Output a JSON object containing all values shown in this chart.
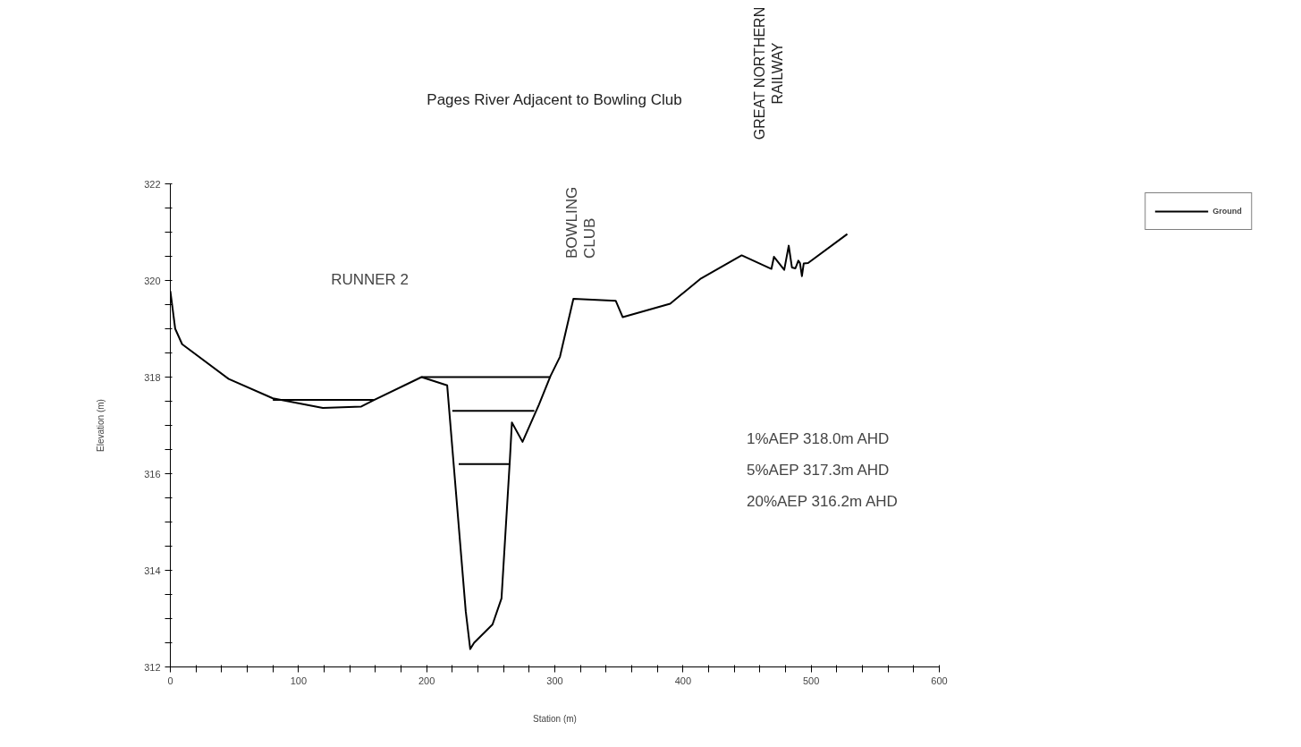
{
  "chart_data": {
    "type": "line",
    "title": "Pages River Adjacent to Bowling Club",
    "xlabel": "Station (m)",
    "ylabel": "Elevation (m)",
    "series": [
      {
        "name": "Ground",
        "color": "#000000",
        "x": [
          0,
          3.8,
          9.2,
          45.6,
          80,
          119,
          149,
          158.6,
          196,
          216,
          230.5,
          234,
          237,
          251.4,
          258.4,
          265,
          266.5,
          274.8,
          287.6,
          296.6,
          304,
          314.5,
          347.5,
          353,
          390,
          414,
          445.8,
          469,
          471,
          479,
          482.5,
          485,
          487.7,
          490,
          491.3,
          492.8,
          494.2,
          497.6,
          528.2
        ],
        "values": [
          319.78,
          319.0,
          318.68,
          317.96,
          317.56,
          317.36,
          317.39,
          317.52,
          318.0,
          317.83,
          313.15,
          312.37,
          312.5,
          312.88,
          313.42,
          316.32,
          317.06,
          316.66,
          317.43,
          318.02,
          318.42,
          319.62,
          319.58,
          319.24,
          319.52,
          320.04,
          320.52,
          320.24,
          320.49,
          320.22,
          320.72,
          320.27,
          320.25,
          320.41,
          320.36,
          320.09,
          320.35,
          320.36,
          320.96
        ]
      },
      {
        "color": "#000000",
        "x": [
          80,
          158.6
        ],
        "values": [
          317.53,
          317.53
        ]
      },
      {
        "color": "#000000",
        "x": [
          196,
          296.6
        ],
        "values": [
          318.0,
          318.0
        ]
      },
      {
        "color": "#000000",
        "x": [
          220,
          284
        ],
        "values": [
          317.3,
          317.3
        ]
      },
      {
        "color": "#000000",
        "x": [
          225,
          265
        ],
        "values": [
          316.2,
          316.2
        ]
      }
    ],
    "xlim": [
      0,
      600
    ],
    "ylim": [
      312,
      322
    ],
    "xticks": [
      0,
      {
        "value": 20,
        "label": null
      },
      {
        "value": 40,
        "label": null
      },
      {
        "value": 60,
        "label": null
      },
      {
        "value": 80,
        "label": null
      },
      100,
      {
        "value": 120,
        "label": null
      },
      {
        "value": 140,
        "label": null
      },
      {
        "value": 160,
        "label": null
      },
      {
        "value": 180,
        "label": null
      },
      200,
      {
        "value": 220,
        "label": null
      },
      {
        "value": 240,
        "label": null
      },
      {
        "value": 260,
        "label": null
      },
      {
        "value": 280,
        "label": null
      },
      300,
      {
        "value": 320,
        "label": null
      },
      {
        "value": 340,
        "label": null
      },
      {
        "value": 360,
        "label": null
      },
      {
        "value": 380,
        "label": null
      },
      400,
      {
        "value": 420,
        "label": null
      },
      {
        "value": 440,
        "label": null
      },
      {
        "value": 460,
        "label": null
      },
      {
        "value": 480,
        "label": null
      },
      500,
      {
        "value": 520,
        "label": null
      },
      {
        "value": 540,
        "label": null
      },
      {
        "value": 560,
        "label": null
      },
      {
        "value": 580,
        "label": null
      },
      600
    ],
    "yticks": [
      312,
      {
        "value": 312.5,
        "label": null
      },
      {
        "value": 313,
        "label": null
      },
      {
        "value": 313.5,
        "label": null
      },
      314,
      {
        "value": 314.5,
        "label": null
      },
      {
        "value": 315,
        "label": null
      },
      {
        "value": 315.5,
        "label": null
      },
      316,
      {
        "value": 316.5,
        "label": null
      },
      {
        "value": 317,
        "label": null
      },
      {
        "value": 317.5,
        "label": null
      },
      318,
      {
        "value": 318.5,
        "label": null
      },
      {
        "value": 319,
        "label": null
      },
      {
        "value": 319.5,
        "label": null
      },
      320,
      {
        "value": 320.5,
        "label": null
      },
      {
        "value": 321,
        "label": null
      },
      {
        "value": 321.5,
        "label": null
      },
      322
    ],
    "grid": false,
    "legend": "top right",
    "marker": "none",
    "line_style": "solid",
    "annotations": [
      "RUNNER 2",
      "BOWLING\nCLUB",
      "GREAT NORTHERN\nRAILWAY",
      "1%AEP 318.0m AHD",
      "5%AEP 317.3m AHD",
      "20%AEP 316.2m AHD"
    ]
  }
}
